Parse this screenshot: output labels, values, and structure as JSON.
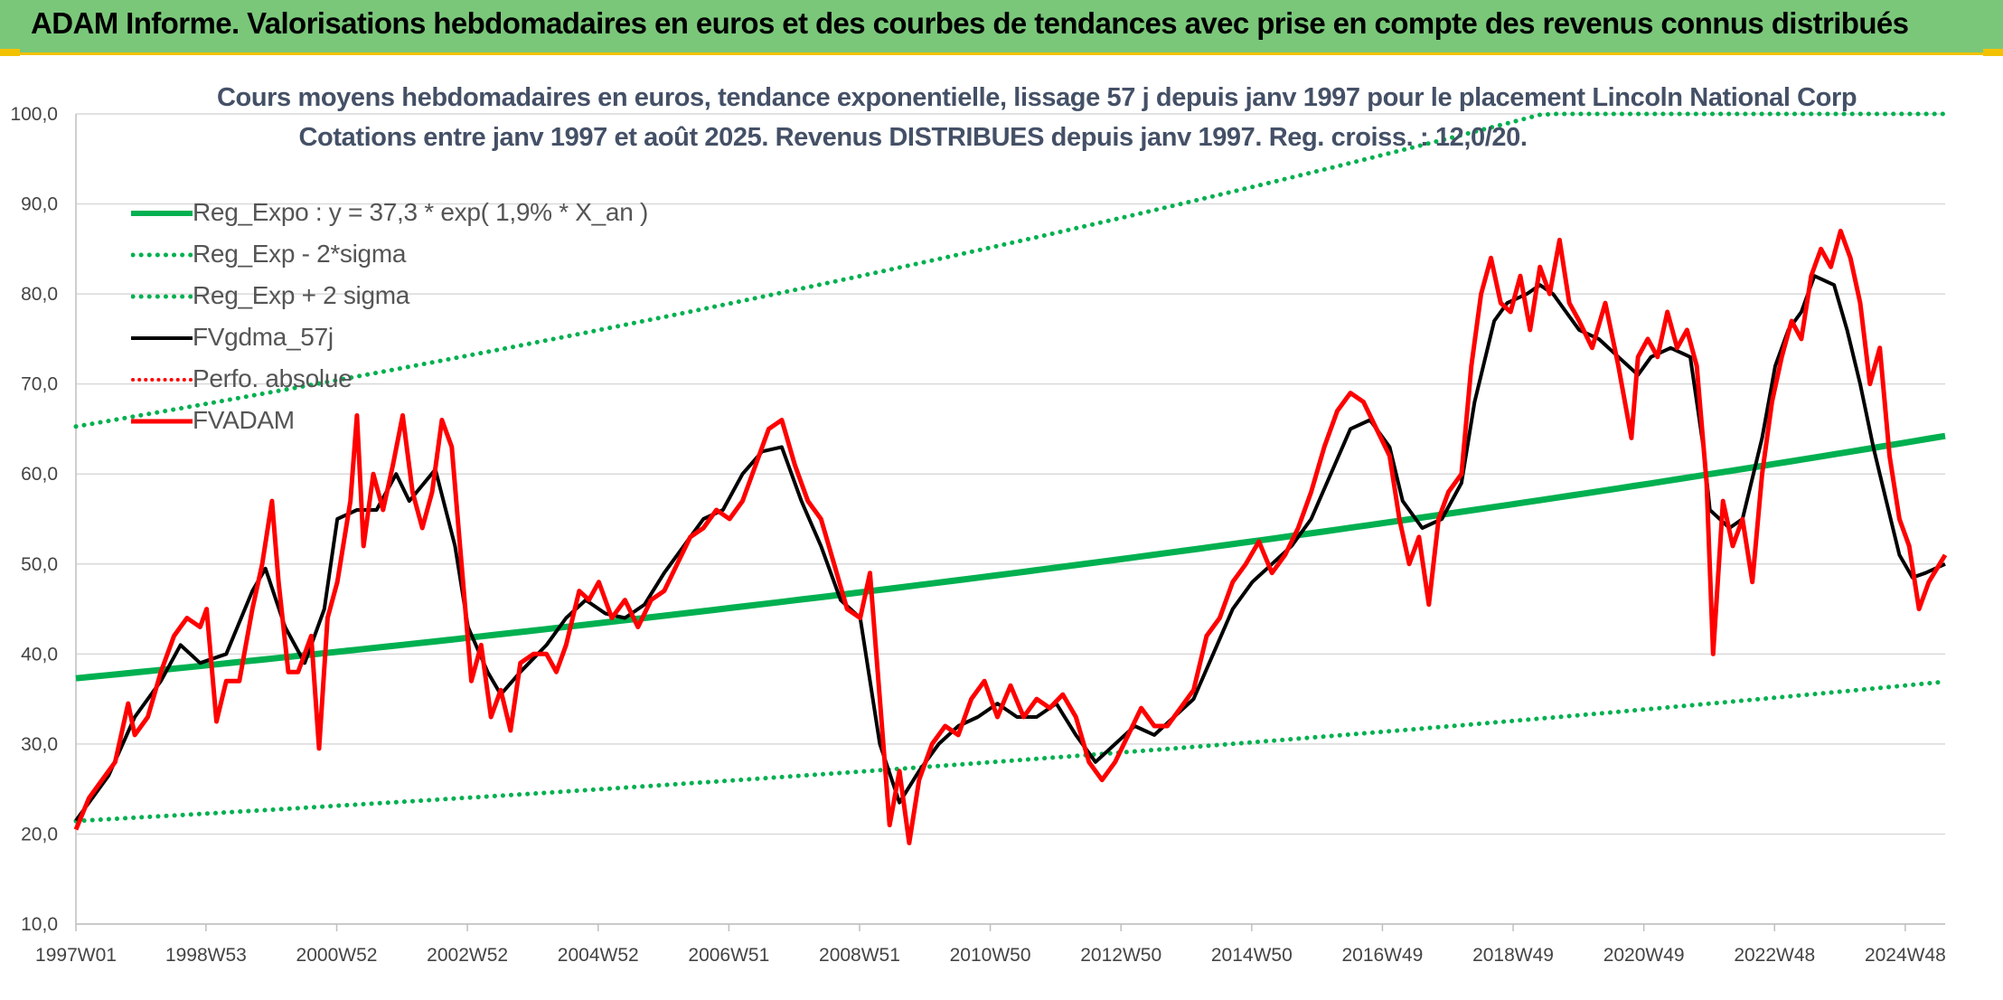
{
  "banner": {
    "title": "ADAM Informe. Valorisations hebdomadaires en euros et des courbes de tendances avec prise en compte des revenus connus distribués"
  },
  "colors": {
    "banner_bg": "#7ac77a",
    "accent_border": "#f2c200",
    "regression": "#00b050",
    "smoothed": "#000000",
    "fvadam": "#ff0000",
    "perfo": "#ff0000",
    "grid": "#d9d9d9"
  },
  "chart_data": {
    "type": "line",
    "title": "Cours moyens hebdomadaires en euros, tendance exponentielle, lissage 57 j depuis janv 1997 pour le placement Lincoln National Corp",
    "subtitle": "Cotations entre janv 1997 et août 2025. Revenus DISTRIBUES depuis janv 1997. Reg. croiss. : 12,0/20.",
    "xlabel": "",
    "ylabel": "",
    "ylim": [
      10,
      100
    ],
    "y_ticks": [
      "10,0",
      "20,0",
      "30,0",
      "40,0",
      "50,0",
      "60,0",
      "70,0",
      "80,0",
      "90,0",
      "100,0"
    ],
    "x_range": [
      1997.0,
      2025.6
    ],
    "x_ticks": [
      {
        "label": "1997W01",
        "t": 1997.0
      },
      {
        "label": "1998W53",
        "t": 1998.99
      },
      {
        "label": "2000W52",
        "t": 2000.99
      },
      {
        "label": "2002W52",
        "t": 2002.99
      },
      {
        "label": "2004W52",
        "t": 2004.99
      },
      {
        "label": "2006W51",
        "t": 2006.99
      },
      {
        "label": "2008W51",
        "t": 2008.99
      },
      {
        "label": "2010W50",
        "t": 2010.99
      },
      {
        "label": "2012W50",
        "t": 2012.99
      },
      {
        "label": "2014W50",
        "t": 2014.99
      },
      {
        "label": "2016W49",
        "t": 2016.99
      },
      {
        "label": "2018W49",
        "t": 2018.99
      },
      {
        "label": "2020W49",
        "t": 2020.99
      },
      {
        "label": "2022W48",
        "t": 2022.99
      },
      {
        "label": "2024W48",
        "t": 2024.99
      }
    ],
    "grid": true,
    "legend_position": "top-left",
    "regression": {
      "a": 37.3,
      "rate": 0.019,
      "lower_factor": 0.575,
      "upper_factor": 1.75
    },
    "series": [
      {
        "name": "Reg_Expo : y = 37,3 * exp( 1,9% *  X_an )",
        "style": "solid-thick",
        "color": "#00b050",
        "kind": "reg"
      },
      {
        "name": "Reg_Exp - 2*sigma",
        "style": "dotted",
        "color": "#00b050",
        "kind": "reg_low"
      },
      {
        "name": "Reg_Exp + 2 sigma",
        "style": "dotted",
        "color": "#00b050",
        "kind": "reg_high"
      },
      {
        "name": "FVgdma_57j",
        "style": "solid",
        "color": "#000000",
        "kind": "smooth",
        "points": [
          [
            1997.0,
            21.5
          ],
          [
            1997.5,
            26.5
          ],
          [
            1997.9,
            33
          ],
          [
            1998.3,
            37
          ],
          [
            1998.6,
            41
          ],
          [
            1998.9,
            39
          ],
          [
            1999.3,
            40
          ],
          [
            1999.7,
            47
          ],
          [
            1999.9,
            49.5
          ],
          [
            2000.2,
            43
          ],
          [
            2000.5,
            39
          ],
          [
            2000.8,
            45
          ],
          [
            2001.0,
            55
          ],
          [
            2001.3,
            56
          ],
          [
            2001.6,
            56
          ],
          [
            2001.9,
            60
          ],
          [
            2002.1,
            57
          ],
          [
            2002.5,
            60.5
          ],
          [
            2002.8,
            52
          ],
          [
            2003.0,
            43
          ],
          [
            2003.3,
            38
          ],
          [
            2003.5,
            35.5
          ],
          [
            2003.8,
            38
          ],
          [
            2004.2,
            41
          ],
          [
            2004.5,
            44
          ],
          [
            2004.8,
            46
          ],
          [
            2005.1,
            44.5
          ],
          [
            2005.4,
            44
          ],
          [
            2005.7,
            45.5
          ],
          [
            2006.0,
            49
          ],
          [
            2006.3,
            52
          ],
          [
            2006.6,
            55
          ],
          [
            2006.9,
            56
          ],
          [
            2007.2,
            60
          ],
          [
            2007.5,
            62.5
          ],
          [
            2007.8,
            63
          ],
          [
            2008.1,
            57
          ],
          [
            2008.4,
            52
          ],
          [
            2008.7,
            46
          ],
          [
            2009.0,
            44
          ],
          [
            2009.3,
            30
          ],
          [
            2009.6,
            23.5
          ],
          [
            2009.9,
            27
          ],
          [
            2010.2,
            30
          ],
          [
            2010.5,
            32
          ],
          [
            2010.8,
            33
          ],
          [
            2011.1,
            34.5
          ],
          [
            2011.4,
            33
          ],
          [
            2011.7,
            33
          ],
          [
            2012.0,
            34.5
          ],
          [
            2012.3,
            31
          ],
          [
            2012.6,
            28
          ],
          [
            2012.9,
            30
          ],
          [
            2013.2,
            32
          ],
          [
            2013.5,
            31
          ],
          [
            2013.8,
            33
          ],
          [
            2014.1,
            35
          ],
          [
            2014.4,
            40
          ],
          [
            2014.7,
            45
          ],
          [
            2015.0,
            48
          ],
          [
            2015.3,
            50
          ],
          [
            2015.6,
            52
          ],
          [
            2015.9,
            55
          ],
          [
            2016.2,
            60
          ],
          [
            2016.5,
            65
          ],
          [
            2016.8,
            66
          ],
          [
            2017.1,
            63
          ],
          [
            2017.3,
            57
          ],
          [
            2017.6,
            54
          ],
          [
            2017.9,
            55
          ],
          [
            2018.2,
            59
          ],
          [
            2018.4,
            68
          ],
          [
            2018.7,
            77
          ],
          [
            2018.9,
            79
          ],
          [
            2019.2,
            80
          ],
          [
            2019.4,
            81
          ],
          [
            2019.6,
            80
          ],
          [
            2019.8,
            78
          ],
          [
            2020.0,
            76
          ],
          [
            2020.3,
            75
          ],
          [
            2020.6,
            73
          ],
          [
            2020.9,
            71
          ],
          [
            2021.1,
            73
          ],
          [
            2021.4,
            74
          ],
          [
            2021.7,
            73
          ],
          [
            2021.9,
            63
          ],
          [
            2022.0,
            56
          ],
          [
            2022.3,
            54
          ],
          [
            2022.5,
            55
          ],
          [
            2022.8,
            64
          ],
          [
            2023.0,
            72
          ],
          [
            2023.2,
            76
          ],
          [
            2023.4,
            78
          ],
          [
            2023.6,
            82
          ],
          [
            2023.9,
            81
          ],
          [
            2024.1,
            76
          ],
          [
            2024.3,
            70
          ],
          [
            2024.5,
            63
          ],
          [
            2024.7,
            57
          ],
          [
            2024.9,
            51
          ],
          [
            2025.1,
            48.5
          ],
          [
            2025.3,
            49
          ],
          [
            2025.6,
            50
          ]
        ]
      },
      {
        "name": "Perfo. absolue",
        "style": "dotted",
        "color": "#ff0000",
        "kind": "none"
      },
      {
        "name": "FVADAM",
        "style": "solid-thick",
        "color": "#ff0000",
        "kind": "price",
        "points": [
          [
            1997.0,
            20.5
          ],
          [
            1997.2,
            24
          ],
          [
            1997.4,
            26
          ],
          [
            1997.6,
            28
          ],
          [
            1997.8,
            34.5
          ],
          [
            1997.9,
            31
          ],
          [
            1998.1,
            33
          ],
          [
            1998.3,
            38
          ],
          [
            1998.5,
            42
          ],
          [
            1998.7,
            44
          ],
          [
            1998.9,
            43
          ],
          [
            1999.0,
            45
          ],
          [
            1999.15,
            32.5
          ],
          [
            1999.3,
            37
          ],
          [
            1999.5,
            37
          ],
          [
            1999.7,
            45
          ],
          [
            1999.85,
            50
          ],
          [
            2000.0,
            57
          ],
          [
            2000.1,
            48
          ],
          [
            2000.25,
            38
          ],
          [
            2000.4,
            38
          ],
          [
            2000.6,
            42
          ],
          [
            2000.72,
            29.5
          ],
          [
            2000.85,
            44
          ],
          [
            2001.0,
            48
          ],
          [
            2001.2,
            57
          ],
          [
            2001.3,
            66.5
          ],
          [
            2001.4,
            52
          ],
          [
            2001.55,
            60
          ],
          [
            2001.7,
            56
          ],
          [
            2001.85,
            61
          ],
          [
            2002.0,
            66.5
          ],
          [
            2002.15,
            58
          ],
          [
            2002.3,
            54
          ],
          [
            2002.45,
            58
          ],
          [
            2002.6,
            66
          ],
          [
            2002.75,
            63
          ],
          [
            2002.9,
            50
          ],
          [
            2003.05,
            37
          ],
          [
            2003.2,
            41
          ],
          [
            2003.35,
            33
          ],
          [
            2003.5,
            36
          ],
          [
            2003.65,
            31.5
          ],
          [
            2003.8,
            39
          ],
          [
            2004.0,
            40
          ],
          [
            2004.2,
            40
          ],
          [
            2004.35,
            38
          ],
          [
            2004.5,
            41
          ],
          [
            2004.7,
            47
          ],
          [
            2004.85,
            46
          ],
          [
            2005.0,
            48
          ],
          [
            2005.2,
            44
          ],
          [
            2005.4,
            46
          ],
          [
            2005.6,
            43
          ],
          [
            2005.8,
            46
          ],
          [
            2006.0,
            47
          ],
          [
            2006.2,
            50
          ],
          [
            2006.4,
            53
          ],
          [
            2006.6,
            54
          ],
          [
            2006.8,
            56
          ],
          [
            2007.0,
            55
          ],
          [
            2007.2,
            57
          ],
          [
            2007.4,
            61
          ],
          [
            2007.6,
            65
          ],
          [
            2007.8,
            66
          ],
          [
            2008.0,
            61
          ],
          [
            2008.2,
            57
          ],
          [
            2008.4,
            55
          ],
          [
            2008.6,
            50
          ],
          [
            2008.8,
            45
          ],
          [
            2009.0,
            44
          ],
          [
            2009.15,
            49
          ],
          [
            2009.3,
            35
          ],
          [
            2009.45,
            21
          ],
          [
            2009.6,
            27
          ],
          [
            2009.75,
            19
          ],
          [
            2009.9,
            26
          ],
          [
            2010.1,
            30
          ],
          [
            2010.3,
            32
          ],
          [
            2010.5,
            31
          ],
          [
            2010.7,
            35
          ],
          [
            2010.9,
            37
          ],
          [
            2011.1,
            33
          ],
          [
            2011.3,
            36.5
          ],
          [
            2011.5,
            33
          ],
          [
            2011.7,
            35
          ],
          [
            2011.9,
            34
          ],
          [
            2012.1,
            35.5
          ],
          [
            2012.3,
            33
          ],
          [
            2012.5,
            28
          ],
          [
            2012.7,
            26
          ],
          [
            2012.9,
            28
          ],
          [
            2013.1,
            31
          ],
          [
            2013.3,
            34
          ],
          [
            2013.5,
            32
          ],
          [
            2013.7,
            32
          ],
          [
            2013.9,
            34
          ],
          [
            2014.1,
            36
          ],
          [
            2014.3,
            42
          ],
          [
            2014.5,
            44
          ],
          [
            2014.7,
            48
          ],
          [
            2014.9,
            50
          ],
          [
            2015.1,
            52.5
          ],
          [
            2015.3,
            49
          ],
          [
            2015.5,
            51
          ],
          [
            2015.7,
            54
          ],
          [
            2015.9,
            58
          ],
          [
            2016.1,
            63
          ],
          [
            2016.3,
            67
          ],
          [
            2016.5,
            69
          ],
          [
            2016.7,
            68
          ],
          [
            2016.9,
            65
          ],
          [
            2017.1,
            62
          ],
          [
            2017.25,
            55
          ],
          [
            2017.4,
            50
          ],
          [
            2017.55,
            53
          ],
          [
            2017.7,
            45.5
          ],
          [
            2017.85,
            55
          ],
          [
            2018.0,
            58
          ],
          [
            2018.2,
            60
          ],
          [
            2018.35,
            72
          ],
          [
            2018.5,
            80
          ],
          [
            2018.65,
            84
          ],
          [
            2018.8,
            79
          ],
          [
            2018.95,
            78
          ],
          [
            2019.1,
            82
          ],
          [
            2019.25,
            76
          ],
          [
            2019.4,
            83
          ],
          [
            2019.55,
            80
          ],
          [
            2019.7,
            86
          ],
          [
            2019.85,
            79
          ],
          [
            2020.0,
            77
          ],
          [
            2020.2,
            74
          ],
          [
            2020.4,
            79
          ],
          [
            2020.6,
            72
          ],
          [
            2020.8,
            64
          ],
          [
            2020.9,
            73
          ],
          [
            2021.05,
            75
          ],
          [
            2021.2,
            73
          ],
          [
            2021.35,
            78
          ],
          [
            2021.5,
            74
          ],
          [
            2021.65,
            76
          ],
          [
            2021.8,
            72
          ],
          [
            2021.95,
            59
          ],
          [
            2022.05,
            40
          ],
          [
            2022.2,
            57
          ],
          [
            2022.35,
            52
          ],
          [
            2022.5,
            55
          ],
          [
            2022.65,
            48
          ],
          [
            2022.8,
            60
          ],
          [
            2022.95,
            68
          ],
          [
            2023.1,
            73
          ],
          [
            2023.25,
            77
          ],
          [
            2023.4,
            75
          ],
          [
            2023.55,
            82
          ],
          [
            2023.7,
            85
          ],
          [
            2023.85,
            83
          ],
          [
            2024.0,
            87
          ],
          [
            2024.15,
            84
          ],
          [
            2024.3,
            79
          ],
          [
            2024.45,
            70
          ],
          [
            2024.6,
            74
          ],
          [
            2024.75,
            62
          ],
          [
            2024.9,
            55
          ],
          [
            2025.05,
            52
          ],
          [
            2025.2,
            45
          ],
          [
            2025.35,
            48
          ],
          [
            2025.6,
            51
          ]
        ]
      }
    ]
  }
}
